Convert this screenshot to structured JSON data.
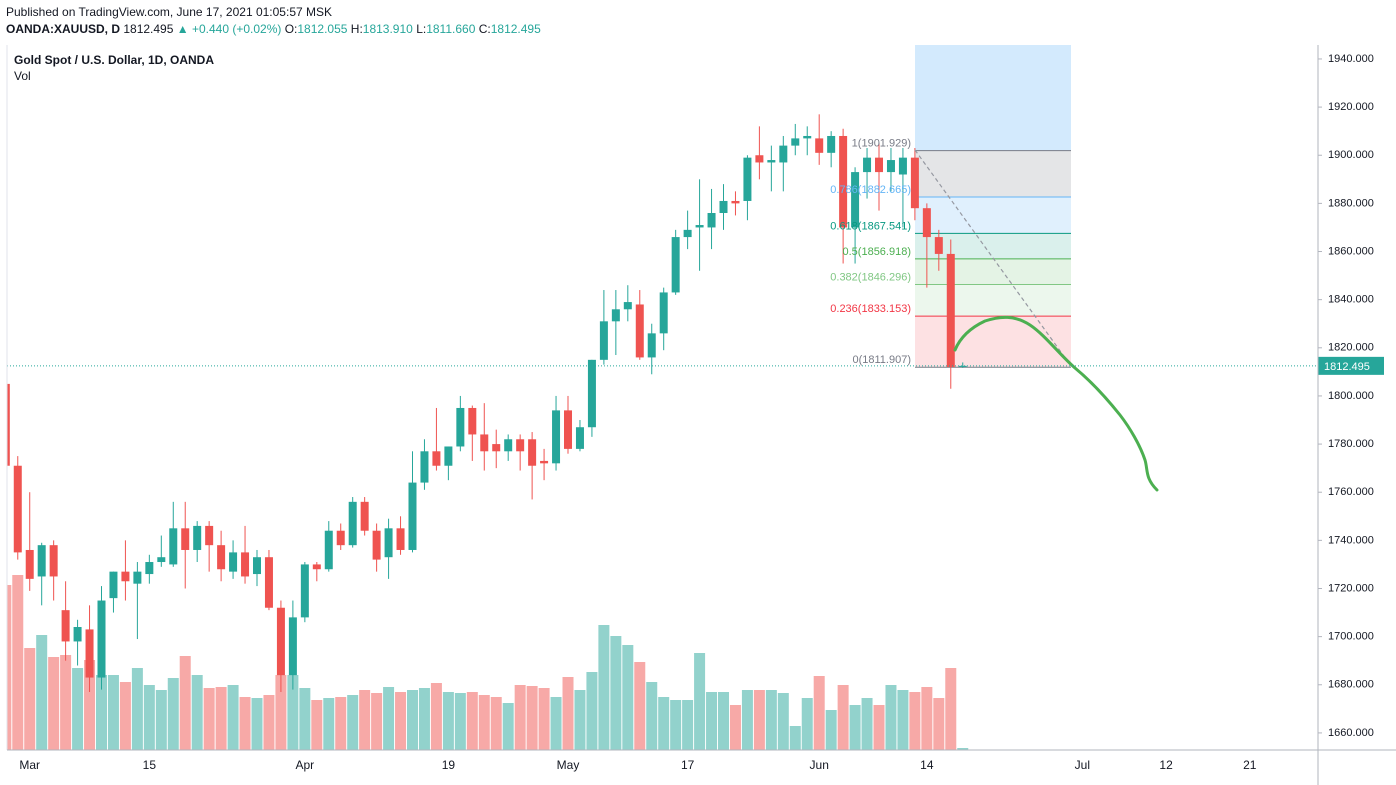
{
  "header": {
    "published": "Published on TradingView.com, June 17, 2021 01:05:57 MSK",
    "symbol": "OANDA:XAUUSD, D",
    "last": "1812.495",
    "change": "▲ +0.440 (+0.02%)",
    "o_label": "O:",
    "o": "1812.055",
    "h_label": "H:",
    "h": "1813.910",
    "l_label": "L:",
    "l": "1811.660",
    "c_label": "C:",
    "c": "1812.495"
  },
  "chart_data": {
    "type": "candlestick",
    "legend": {
      "title": "Gold Spot / U.S. Dollar, 1D, OANDA",
      "vol": "Vol"
    },
    "up_color": "#26a69a",
    "down_color": "#ef5350",
    "x": [
      -2,
      -1,
      0,
      1,
      2,
      3,
      4,
      5,
      6,
      7,
      8,
      9,
      10,
      11,
      12,
      13,
      14,
      15,
      16,
      17,
      18,
      19,
      20,
      21,
      22,
      23,
      24,
      25,
      26,
      27,
      28,
      29,
      30,
      31,
      32,
      33,
      34,
      35,
      36,
      37,
      38,
      39,
      40,
      41,
      42,
      43,
      44,
      45,
      46,
      47,
      48,
      49,
      50,
      51,
      52,
      53,
      54,
      55,
      56,
      57,
      58,
      59,
      60,
      61,
      62,
      63,
      64,
      65,
      66,
      67,
      68,
      69,
      70,
      71,
      72,
      73,
      74,
      75,
      76,
      77,
      78
    ],
    "candles": [
      {
        "o": 1805,
        "h": 1815,
        "l": 1765,
        "c": 1771
      },
      {
        "o": 1771,
        "h": 1775,
        "l": 1732,
        "c": 1735
      },
      {
        "o": 1736,
        "h": 1760,
        "l": 1719,
        "c": 1724
      },
      {
        "o": 1725,
        "h": 1739,
        "l": 1713,
        "c": 1738
      },
      {
        "o": 1738,
        "h": 1740,
        "l": 1715,
        "c": 1725
      },
      {
        "o": 1711,
        "h": 1723,
        "l": 1690,
        "c": 1698
      },
      {
        "o": 1698,
        "h": 1707,
        "l": 1688,
        "c": 1704
      },
      {
        "o": 1703,
        "h": 1713,
        "l": 1677,
        "c": 1683
      },
      {
        "o": 1683,
        "h": 1721,
        "l": 1678,
        "c": 1715
      },
      {
        "o": 1716,
        "h": 1727,
        "l": 1710,
        "c": 1727
      },
      {
        "o": 1727,
        "h": 1740,
        "l": 1715,
        "c": 1723
      },
      {
        "o": 1722,
        "h": 1731,
        "l": 1699,
        "c": 1727
      },
      {
        "o": 1726,
        "h": 1734,
        "l": 1722,
        "c": 1731
      },
      {
        "o": 1731,
        "h": 1742,
        "l": 1729,
        "c": 1733
      },
      {
        "o": 1730,
        "h": 1756,
        "l": 1729,
        "c": 1745
      },
      {
        "o": 1745,
        "h": 1756,
        "l": 1720,
        "c": 1736
      },
      {
        "o": 1736,
        "h": 1748,
        "l": 1731,
        "c": 1746
      },
      {
        "o": 1746,
        "h": 1748,
        "l": 1727,
        "c": 1738
      },
      {
        "o": 1738,
        "h": 1744,
        "l": 1723,
        "c": 1728
      },
      {
        "o": 1727,
        "h": 1740,
        "l": 1724,
        "c": 1735
      },
      {
        "o": 1735,
        "h": 1746,
        "l": 1722,
        "c": 1725
      },
      {
        "o": 1726,
        "h": 1736,
        "l": 1721,
        "c": 1733
      },
      {
        "o": 1733,
        "h": 1736,
        "l": 1711,
        "c": 1712
      },
      {
        "o": 1712,
        "h": 1715,
        "l": 1677,
        "c": 1684
      },
      {
        "o": 1684,
        "h": 1715,
        "l": 1678,
        "c": 1708
      },
      {
        "o": 1708,
        "h": 1731,
        "l": 1706,
        "c": 1730
      },
      {
        "o": 1730,
        "h": 1731,
        "l": 1723,
        "c": 1728
      },
      {
        "o": 1728,
        "h": 1748,
        "l": 1727,
        "c": 1744
      },
      {
        "o": 1744,
        "h": 1747,
        "l": 1736,
        "c": 1738
      },
      {
        "o": 1738,
        "h": 1758,
        "l": 1737,
        "c": 1756
      },
      {
        "o": 1756,
        "h": 1758,
        "l": 1742,
        "c": 1744
      },
      {
        "o": 1744,
        "h": 1747,
        "l": 1727,
        "c": 1732
      },
      {
        "o": 1733,
        "h": 1749,
        "l": 1724,
        "c": 1745
      },
      {
        "o": 1745,
        "h": 1750,
        "l": 1734,
        "c": 1736
      },
      {
        "o": 1736,
        "h": 1777,
        "l": 1735,
        "c": 1764
      },
      {
        "o": 1764,
        "h": 1782,
        "l": 1761,
        "c": 1777
      },
      {
        "o": 1777,
        "h": 1795,
        "l": 1769,
        "c": 1771
      },
      {
        "o": 1771,
        "h": 1779,
        "l": 1765,
        "c": 1779
      },
      {
        "o": 1779,
        "h": 1800,
        "l": 1777,
        "c": 1795
      },
      {
        "o": 1795,
        "h": 1796,
        "l": 1773,
        "c": 1784
      },
      {
        "o": 1784,
        "h": 1797,
        "l": 1769,
        "c": 1777
      },
      {
        "o": 1780,
        "h": 1786,
        "l": 1770,
        "c": 1777
      },
      {
        "o": 1777,
        "h": 1784,
        "l": 1773,
        "c": 1782
      },
      {
        "o": 1782,
        "h": 1784,
        "l": 1769,
        "c": 1777
      },
      {
        "o": 1782,
        "h": 1785,
        "l": 1757,
        "c": 1771
      },
      {
        "o": 1773,
        "h": 1778,
        "l": 1765,
        "c": 1772
      },
      {
        "o": 1772,
        "h": 1800,
        "l": 1769,
        "c": 1794
      },
      {
        "o": 1794,
        "h": 1800,
        "l": 1776,
        "c": 1778
      },
      {
        "o": 1778,
        "h": 1790,
        "l": 1777,
        "c": 1787
      },
      {
        "o": 1787,
        "h": 1815,
        "l": 1783,
        "c": 1815
      },
      {
        "o": 1815,
        "h": 1844,
        "l": 1813,
        "c": 1831
      },
      {
        "o": 1831,
        "h": 1844,
        "l": 1817,
        "c": 1836
      },
      {
        "o": 1836,
        "h": 1846,
        "l": 1831,
        "c": 1839
      },
      {
        "o": 1838,
        "h": 1844,
        "l": 1815,
        "c": 1816
      },
      {
        "o": 1816,
        "h": 1830,
        "l": 1809,
        "c": 1826
      },
      {
        "o": 1826,
        "h": 1845,
        "l": 1819,
        "c": 1843
      },
      {
        "o": 1843,
        "h": 1869,
        "l": 1842,
        "c": 1866
      },
      {
        "o": 1866,
        "h": 1877,
        "l": 1861,
        "c": 1869
      },
      {
        "o": 1870,
        "h": 1890,
        "l": 1852,
        "c": 1871
      },
      {
        "o": 1870,
        "h": 1886,
        "l": 1861,
        "c": 1876
      },
      {
        "o": 1876,
        "h": 1888,
        "l": 1869,
        "c": 1881
      },
      {
        "o": 1881,
        "h": 1885,
        "l": 1875,
        "c": 1880
      },
      {
        "o": 1881,
        "h": 1900,
        "l": 1873,
        "c": 1899
      },
      {
        "o": 1900,
        "h": 1912,
        "l": 1890,
        "c": 1897
      },
      {
        "o": 1897,
        "h": 1904,
        "l": 1885,
        "c": 1898
      },
      {
        "o": 1897,
        "h": 1908,
        "l": 1885,
        "c": 1904
      },
      {
        "o": 1904,
        "h": 1913,
        "l": 1900,
        "c": 1907
      },
      {
        "o": 1907,
        "h": 1912,
        "l": 1900,
        "c": 1908
      },
      {
        "o": 1907,
        "h": 1917,
        "l": 1896,
        "c": 1901
      },
      {
        "o": 1901,
        "h": 1910,
        "l": 1895,
        "c": 1908
      },
      {
        "o": 1908,
        "h": 1911,
        "l": 1855,
        "c": 1870
      },
      {
        "o": 1870,
        "h": 1895,
        "l": 1855,
        "c": 1893
      },
      {
        "o": 1893,
        "h": 1903,
        "l": 1882,
        "c": 1899
      },
      {
        "o": 1899,
        "h": 1905,
        "l": 1877,
        "c": 1893
      },
      {
        "o": 1893,
        "h": 1903,
        "l": 1885,
        "c": 1898
      },
      {
        "o": 1892,
        "h": 1903,
        "l": 1870,
        "c": 1899
      },
      {
        "o": 1899,
        "h": 1903,
        "l": 1873,
        "c": 1878
      },
      {
        "o": 1878,
        "h": 1880,
        "l": 1845,
        "c": 1866
      },
      {
        "o": 1866,
        "h": 1869,
        "l": 1852,
        "c": 1859
      },
      {
        "o": 1859,
        "h": 1865,
        "l": 1803,
        "c": 1812
      },
      {
        "o": 1812.055,
        "h": 1813.91,
        "l": 1811.66,
        "c": 1812.495
      }
    ],
    "volume": [
      165,
      175,
      102,
      115,
      93,
      95,
      82,
      90,
      75,
      75,
      68,
      82,
      65,
      60,
      72,
      94,
      75,
      62,
      63,
      65,
      53,
      52,
      55,
      75,
      75,
      62,
      50,
      52,
      53,
      55,
      60,
      57,
      63,
      58,
      60,
      62,
      67,
      58,
      57,
      58,
      55,
      53,
      47,
      65,
      64,
      62,
      53,
      73,
      60,
      78,
      125,
      114,
      105,
      88,
      68,
      53,
      50,
      50,
      97,
      58,
      58,
      45,
      60,
      60,
      60,
      57,
      24,
      52,
      74,
      40,
      65,
      45,
      52,
      45,
      65,
      60,
      58,
      63,
      52,
      82,
      2
    ],
    "xlim": [
      -1.9,
      107.7
    ],
    "ylim": [
      1652.9,
      1945.8
    ],
    "xticks": [
      {
        "value": 0,
        "label": "Mar"
      },
      {
        "value": 10,
        "label": "15"
      },
      {
        "value": 23,
        "label": "Apr"
      },
      {
        "value": 35,
        "label": "19"
      },
      {
        "value": 45,
        "label": "May"
      },
      {
        "value": 55,
        "label": "17"
      },
      {
        "value": 66,
        "label": "Jun"
      },
      {
        "value": 75,
        "label": "14"
      },
      {
        "value": 88,
        "label": "Jul"
      },
      {
        "value": 95,
        "label": "12"
      },
      {
        "value": 102,
        "label": "21"
      }
    ],
    "yticks": [
      {
        "value": 1660,
        "label": "1660.000"
      },
      {
        "value": 1680,
        "label": "1680.000"
      },
      {
        "value": 1700,
        "label": "1700.000"
      },
      {
        "value": 1720,
        "label": "1720.000"
      },
      {
        "value": 1740,
        "label": "1740.000"
      },
      {
        "value": 1760,
        "label": "1760.000"
      },
      {
        "value": 1780,
        "label": "1780.000"
      },
      {
        "value": 1800,
        "label": "1800.000"
      },
      {
        "value": 1820,
        "label": "1820.000"
      },
      {
        "value": 1840,
        "label": "1840.000"
      },
      {
        "value": 1860,
        "label": "1860.000"
      },
      {
        "value": 1880,
        "label": "1880.000"
      },
      {
        "value": 1900,
        "label": "1900.000"
      },
      {
        "value": 1920,
        "label": "1920.000"
      },
      {
        "value": 1940,
        "label": "1940.000"
      }
    ],
    "grid": true,
    "last_price": {
      "value": 1812.495,
      "label": "1812.495"
    },
    "fib": {
      "levels": [
        {
          "value": 1901.929,
          "label": "1(1901.929)",
          "color": "#787b86",
          "fill": "rgba(120,123,134,0.2)"
        },
        {
          "value": 1882.665,
          "label": "0.786(1882.665)",
          "color": "#64b5f6",
          "fill": "rgba(100,181,246,0.2)"
        },
        {
          "value": 1867.541,
          "label": "0.618(1867.541)",
          "color": "#089981",
          "fill": "rgba(8,153,129,0.15)"
        },
        {
          "value": 1856.918,
          "label": "0.5(1856.918)",
          "color": "#4caf50",
          "fill": "rgba(76,175,80,0.15)"
        },
        {
          "value": 1846.296,
          "label": "0.382(1846.296)",
          "color": "#81c784",
          "fill": "rgba(129,199,132,0.15)"
        },
        {
          "value": 1833.153,
          "label": "0.236(1833.153)",
          "color": "#f23645",
          "fill": "rgba(242,54,69,0.15)"
        },
        {
          "value": 1811.907,
          "label": "0(1811.907)",
          "color": "#787b86",
          "fill": "none"
        }
      ]
    }
  }
}
